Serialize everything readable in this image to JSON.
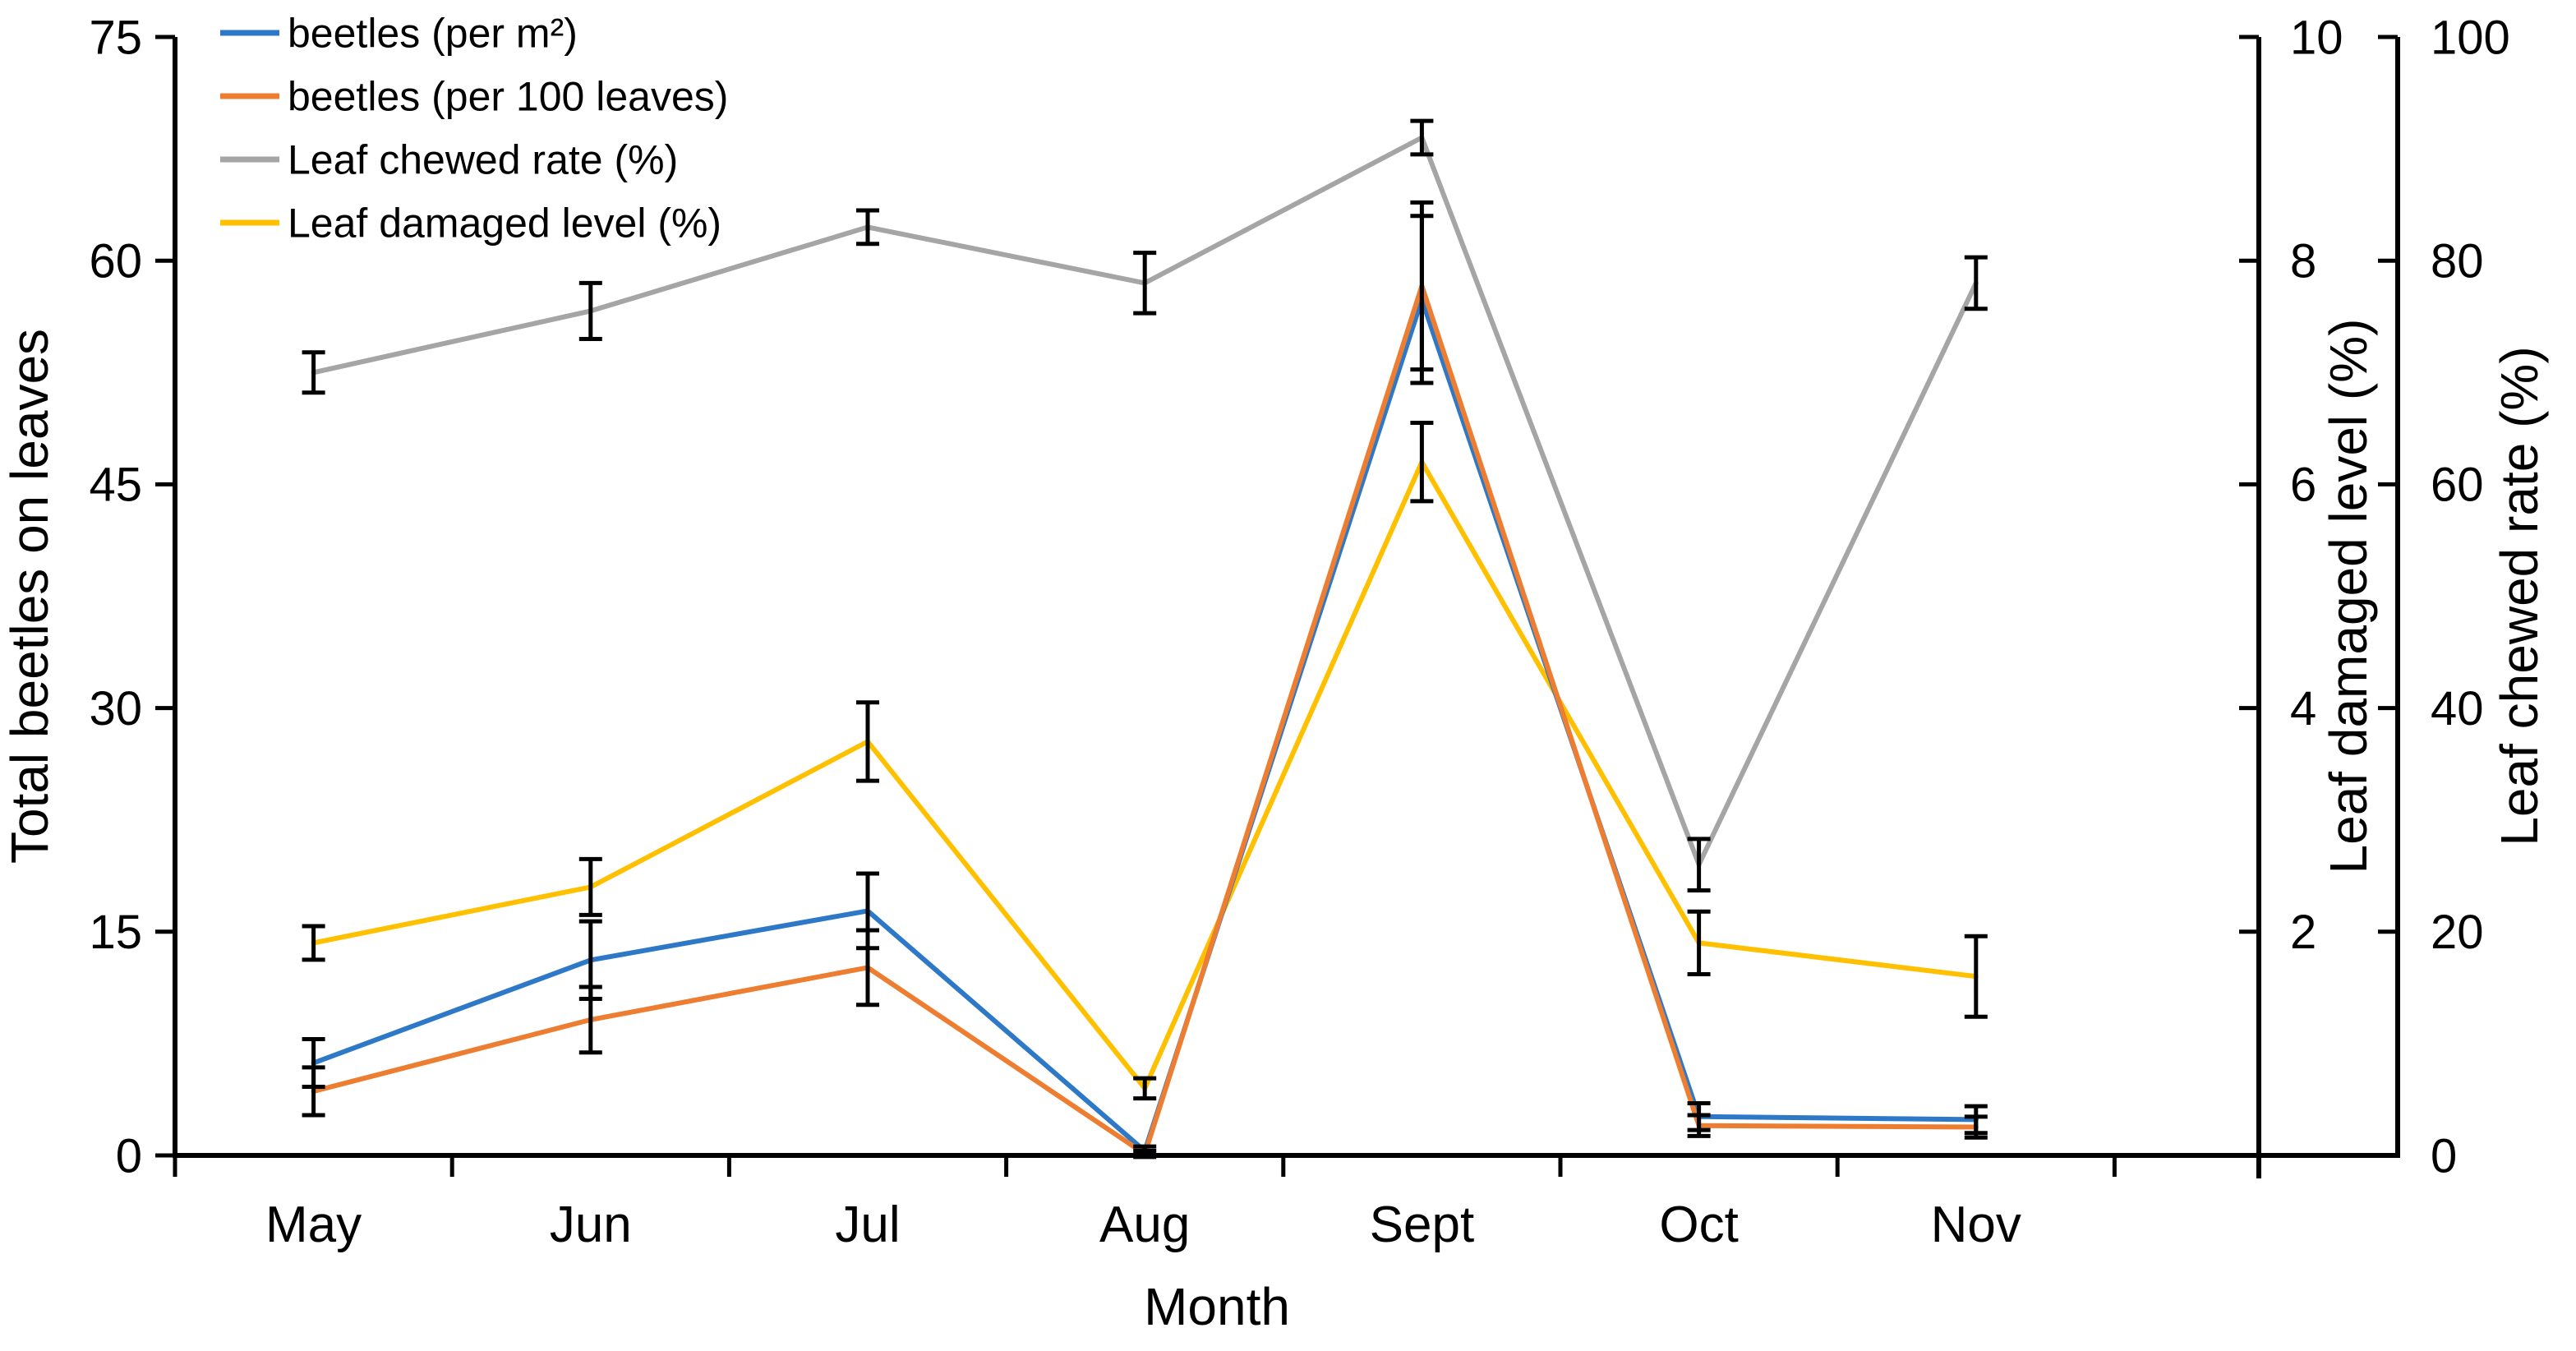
{
  "chart_data": {
    "type": "line",
    "title": "",
    "xlabel": "Month",
    "categories": [
      "May",
      "Jun",
      "Jul",
      "Aug",
      "Sept",
      "Oct",
      "Nov"
    ],
    "grid": false,
    "legend_position": "top-left",
    "error_bars": true,
    "colors": {
      "beetles_per_m2": "#2E79C7",
      "beetles_per_100_leaves": "#ED7D31",
      "leaf_chewed_rate": "#A5A5A5",
      "leaf_damaged_level": "#FFC000",
      "axis": "#000000",
      "error_bar": "#000000",
      "background": "#FFFFFF"
    },
    "axes": {
      "left": {
        "label": "Total beetles on leaves",
        "min": 0,
        "max": 75,
        "ticks": [
          0,
          15,
          30,
          45,
          60,
          75
        ]
      },
      "right_inner": {
        "label": "Leaf damaged level (%)",
        "min": 0,
        "max": 10,
        "ticks": [
          2,
          4,
          6,
          8,
          10
        ]
      },
      "right_outer": {
        "label": "Leaf chewed rate (%)",
        "min": 0,
        "max": 100,
        "ticks": [
          0,
          20,
          40,
          60,
          80,
          100
        ]
      }
    },
    "series": [
      {
        "name": "beetles (per m²)",
        "key": "beetles_per_m2",
        "axis": "left",
        "color": "#2E79C7",
        "values": [
          6.2,
          13.1,
          16.4,
          0.3,
          57.4,
          2.6,
          2.4
        ],
        "errors": [
          1.6,
          2.6,
          2.5,
          0.3,
          5.6,
          0.9,
          0.9
        ]
      },
      {
        "name": "beetles (per 100 leaves)",
        "key": "beetles_per_100_leaves",
        "axis": "left",
        "color": "#ED7D31",
        "values": [
          4.3,
          9.1,
          12.6,
          0.1,
          58.3,
          2.0,
          1.9
        ],
        "errors": [
          1.6,
          2.2,
          2.5,
          0.2,
          5.6,
          0.7,
          0.7
        ]
      },
      {
        "name": "Leaf chewed rate (%)",
        "key": "leaf_chewed_rate",
        "axis": "right_outer",
        "color": "#A5A5A5",
        "values": [
          70,
          75.5,
          83,
          78,
          91,
          26,
          78
        ],
        "errors": [
          1.8,
          2.5,
          1.5,
          2.7,
          1.5,
          2.3,
          2.3
        ]
      },
      {
        "name": "Leaf damaged level (%)",
        "key": "leaf_damaged_level",
        "axis": "right_inner",
        "color": "#FFC000",
        "values": [
          1.9,
          2.4,
          3.7,
          0.6,
          6.2,
          1.9,
          1.6
        ],
        "errors": [
          0.15,
          0.25,
          0.35,
          0.09,
          0.35,
          0.28,
          0.36
        ]
      }
    ]
  }
}
